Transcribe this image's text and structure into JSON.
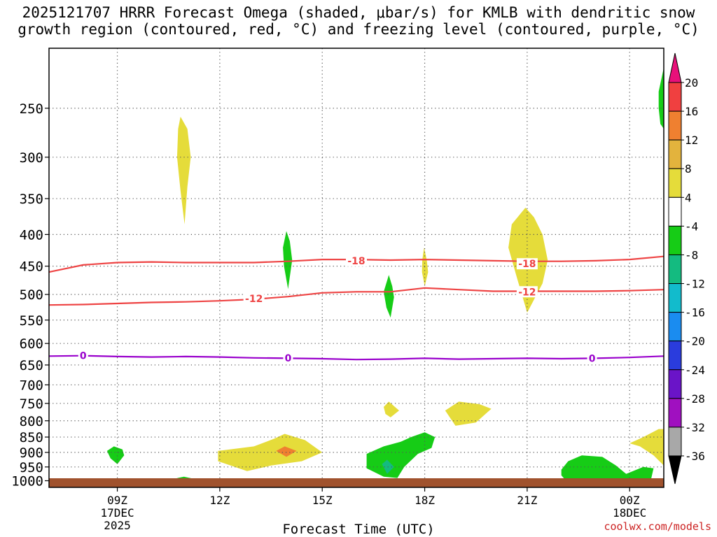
{
  "title_line1": "2025121707 HRRR Forecast Omega (shaded, μbar/s) for KMLB with dendritic snow",
  "title_line2": "growth region (contoured, red, °C) and freezing level (contoured, purple, °C)",
  "credit": "coolwx.com/models",
  "colors": {
    "dgz_contour": "#ee4444",
    "freezing_contour": "#9900cc",
    "ground": "#a0522d",
    "grid": "#555555"
  },
  "chart_data": {
    "type": "heatmap",
    "xlabel": "Forecast Time (UTC)",
    "ylabel": "",
    "xlim": [
      7,
      25
    ],
    "ylim": [
      1025,
      200
    ],
    "y_scale": "log-pressure",
    "grid": true,
    "x_ticks": [
      {
        "value": 9,
        "label": "09Z",
        "sub1": "17DEC",
        "sub2": "2025"
      },
      {
        "value": 12,
        "label": "12Z",
        "sub1": "",
        "sub2": ""
      },
      {
        "value": 15,
        "label": "15Z",
        "sub1": "",
        "sub2": ""
      },
      {
        "value": 18,
        "label": "18Z",
        "sub1": "",
        "sub2": ""
      },
      {
        "value": 21,
        "label": "21Z",
        "sub1": "",
        "sub2": ""
      },
      {
        "value": 24,
        "label": "00Z",
        "sub1": "18DEC",
        "sub2": ""
      }
    ],
    "y_ticks": [
      250,
      300,
      350,
      400,
      450,
      500,
      550,
      600,
      650,
      700,
      750,
      800,
      850,
      900,
      950,
      1000
    ],
    "colorbar": {
      "labels": [
        "20",
        "16",
        "12",
        "8",
        "4",
        "-4",
        "-8",
        "-12",
        "-16",
        "-20",
        "-24",
        "-28",
        "-32",
        "-36"
      ],
      "bins": [
        {
          "color": "#e8107a"
        },
        {
          "color": "#f04040"
        },
        {
          "color": "#ef8030"
        },
        {
          "color": "#e3b33d"
        },
        {
          "color": "#e5dc3a"
        },
        {
          "color": "#ffffff"
        },
        {
          "color": "#16cc16"
        },
        {
          "color": "#14bb80"
        },
        {
          "color": "#12bbcc"
        },
        {
          "color": "#1a8cf0"
        },
        {
          "color": "#2a3cdd"
        },
        {
          "color": "#6a14c8"
        },
        {
          "color": "#a010c0"
        },
        {
          "color": "#a8a8a8"
        },
        {
          "color": "#000000"
        }
      ]
    },
    "contours": [
      {
        "label": "-18",
        "color": "#ee4444",
        "label_points": [
          [
            16.0,
            441
          ],
          [
            21.0,
            446
          ]
        ],
        "points": [
          [
            7,
            460
          ],
          [
            8,
            448
          ],
          [
            9,
            444
          ],
          [
            10,
            443
          ],
          [
            11,
            444
          ],
          [
            12,
            444
          ],
          [
            13,
            444
          ],
          [
            14,
            442
          ],
          [
            15,
            439
          ],
          [
            16,
            439
          ],
          [
            17,
            440
          ],
          [
            18,
            439
          ],
          [
            19,
            440
          ],
          [
            20,
            441
          ],
          [
            21,
            442
          ],
          [
            22,
            442
          ],
          [
            23,
            441
          ],
          [
            24,
            439
          ],
          [
            25,
            434
          ]
        ]
      },
      {
        "label": "-12",
        "color": "#ee4444",
        "label_points": [
          [
            13.0,
            508
          ],
          [
            21.0,
            495
          ]
        ],
        "points": [
          [
            7,
            520
          ],
          [
            8,
            519
          ],
          [
            9,
            517
          ],
          [
            10,
            515
          ],
          [
            11,
            514
          ],
          [
            12,
            512
          ],
          [
            13,
            509
          ],
          [
            14,
            504
          ],
          [
            15,
            497
          ],
          [
            16,
            495
          ],
          [
            17,
            495
          ],
          [
            18,
            488
          ],
          [
            19,
            491
          ],
          [
            20,
            494
          ],
          [
            21,
            494
          ],
          [
            22,
            494
          ],
          [
            23,
            494
          ],
          [
            24,
            493
          ],
          [
            25,
            491
          ]
        ]
      },
      {
        "label": "0",
        "color": "#9900cc",
        "label_points": [
          [
            8.0,
            628
          ],
          [
            14.0,
            633
          ],
          [
            22.9,
            634
          ]
        ],
        "points": [
          [
            7,
            629
          ],
          [
            8,
            628
          ],
          [
            9,
            630
          ],
          [
            10,
            631
          ],
          [
            11,
            630
          ],
          [
            12,
            631
          ],
          [
            13,
            633
          ],
          [
            14,
            634
          ],
          [
            15,
            635
          ],
          [
            16,
            637
          ],
          [
            17,
            636
          ],
          [
            18,
            634
          ],
          [
            19,
            636
          ],
          [
            20,
            635
          ],
          [
            21,
            634
          ],
          [
            22,
            635
          ],
          [
            23,
            634
          ],
          [
            24,
            632
          ],
          [
            25,
            629
          ]
        ]
      }
    ],
    "regions": [
      {
        "color": "#e5dc3a",
        "points": [
          [
            10.85,
            258
          ],
          [
            11.05,
            270
          ],
          [
            11.15,
            300
          ],
          [
            11.05,
            335
          ],
          [
            10.97,
            385
          ],
          [
            10.85,
            340
          ],
          [
            10.75,
            300
          ],
          [
            10.78,
            270
          ]
        ]
      },
      {
        "color": "#16cc16",
        "points": [
          [
            13.95,
            395
          ],
          [
            14.05,
            410
          ],
          [
            14.12,
            440
          ],
          [
            14.0,
            490
          ],
          [
            13.88,
            450
          ],
          [
            13.85,
            420
          ]
        ]
      },
      {
        "color": "#16cc16",
        "points": [
          [
            16.95,
            465
          ],
          [
            17.05,
            485
          ],
          [
            17.1,
            505
          ],
          [
            17.0,
            545
          ],
          [
            16.88,
            525
          ],
          [
            16.8,
            495
          ]
        ]
      },
      {
        "color": "#e5dc3a",
        "points": [
          [
            17.98,
            420
          ],
          [
            18.06,
            440
          ],
          [
            18.1,
            460
          ],
          [
            18.0,
            485
          ],
          [
            17.92,
            460
          ],
          [
            17.93,
            440
          ]
        ]
      },
      {
        "color": "#e5dc3a",
        "points": [
          [
            20.95,
            362
          ],
          [
            21.2,
            375
          ],
          [
            21.45,
            400
          ],
          [
            21.6,
            440
          ],
          [
            21.45,
            480
          ],
          [
            21.0,
            535
          ],
          [
            20.7,
            470
          ],
          [
            20.45,
            420
          ],
          [
            20.55,
            385
          ]
        ]
      },
      {
        "color": "#e5dc3a",
        "points": [
          [
            16.8,
            760
          ],
          [
            16.95,
            745
          ],
          [
            17.25,
            770
          ],
          [
            17.0,
            790
          ],
          [
            16.85,
            780
          ]
        ]
      },
      {
        "color": "#e5dc3a",
        "points": [
          [
            18.6,
            770
          ],
          [
            19.0,
            745
          ],
          [
            19.6,
            752
          ],
          [
            19.95,
            765
          ],
          [
            19.5,
            805
          ],
          [
            18.9,
            815
          ]
        ]
      },
      {
        "color": "#16cc16",
        "points": [
          [
            8.7,
            895
          ],
          [
            8.9,
            880
          ],
          [
            9.15,
            890
          ],
          [
            9.2,
            910
          ],
          [
            9.0,
            940
          ],
          [
            8.8,
            920
          ]
        ]
      },
      {
        "color": "#e5dc3a",
        "points": [
          [
            11.95,
            895
          ],
          [
            13.0,
            880
          ],
          [
            13.6,
            855
          ],
          [
            13.9,
            840
          ],
          [
            14.5,
            860
          ],
          [
            15.0,
            900
          ],
          [
            14.4,
            930
          ],
          [
            13.5,
            945
          ],
          [
            12.8,
            965
          ],
          [
            11.95,
            930
          ]
        ]
      },
      {
        "color": "#ef8030",
        "points": [
          [
            13.65,
            895
          ],
          [
            13.9,
            880
          ],
          [
            14.25,
            895
          ],
          [
            13.95,
            915
          ]
        ]
      },
      {
        "color": "#16cc16",
        "points": [
          [
            16.3,
            905
          ],
          [
            16.8,
            880
          ],
          [
            17.3,
            865
          ],
          [
            17.6,
            850
          ],
          [
            18.0,
            835
          ],
          [
            18.3,
            850
          ],
          [
            18.2,
            885
          ],
          [
            17.8,
            905
          ],
          [
            17.4,
            950
          ],
          [
            17.2,
            990
          ],
          [
            16.8,
            985
          ],
          [
            16.3,
            955
          ]
        ]
      },
      {
        "color": "#14bb80",
        "points": [
          [
            16.75,
            940
          ],
          [
            16.9,
            925
          ],
          [
            17.1,
            950
          ],
          [
            16.9,
            975
          ]
        ]
      },
      {
        "color": "#16cc16",
        "points": [
          [
            8.7,
            1003
          ],
          [
            9.5,
            1002
          ],
          [
            10.5,
            997
          ],
          [
            10.95,
            985
          ],
          [
            11.5,
            1000
          ],
          [
            11.4,
            1008
          ],
          [
            8.7,
            1008
          ]
        ]
      },
      {
        "color": "#16cc16",
        "points": [
          [
            22.2,
            930
          ],
          [
            22.6,
            910
          ],
          [
            23.2,
            915
          ],
          [
            23.6,
            945
          ],
          [
            23.9,
            975
          ],
          [
            24.4,
            950
          ],
          [
            24.7,
            955
          ],
          [
            24.6,
            1010
          ],
          [
            22.2,
            1010
          ],
          [
            22.0,
            980
          ],
          [
            22.0,
            960
          ]
        ]
      },
      {
        "color": "#e5dc3a",
        "points": [
          [
            24.0,
            870
          ],
          [
            24.4,
            850
          ],
          [
            24.85,
            825
          ],
          [
            25,
            825
          ],
          [
            25,
            945
          ],
          [
            24.7,
            910
          ],
          [
            24.3,
            880
          ]
        ]
      },
      {
        "color": "#16cc16",
        "points": [
          [
            24.85,
            235
          ],
          [
            25,
            215
          ],
          [
            25,
            270
          ],
          [
            24.9,
            265
          ],
          [
            24.85,
            250
          ]
        ]
      }
    ]
  }
}
